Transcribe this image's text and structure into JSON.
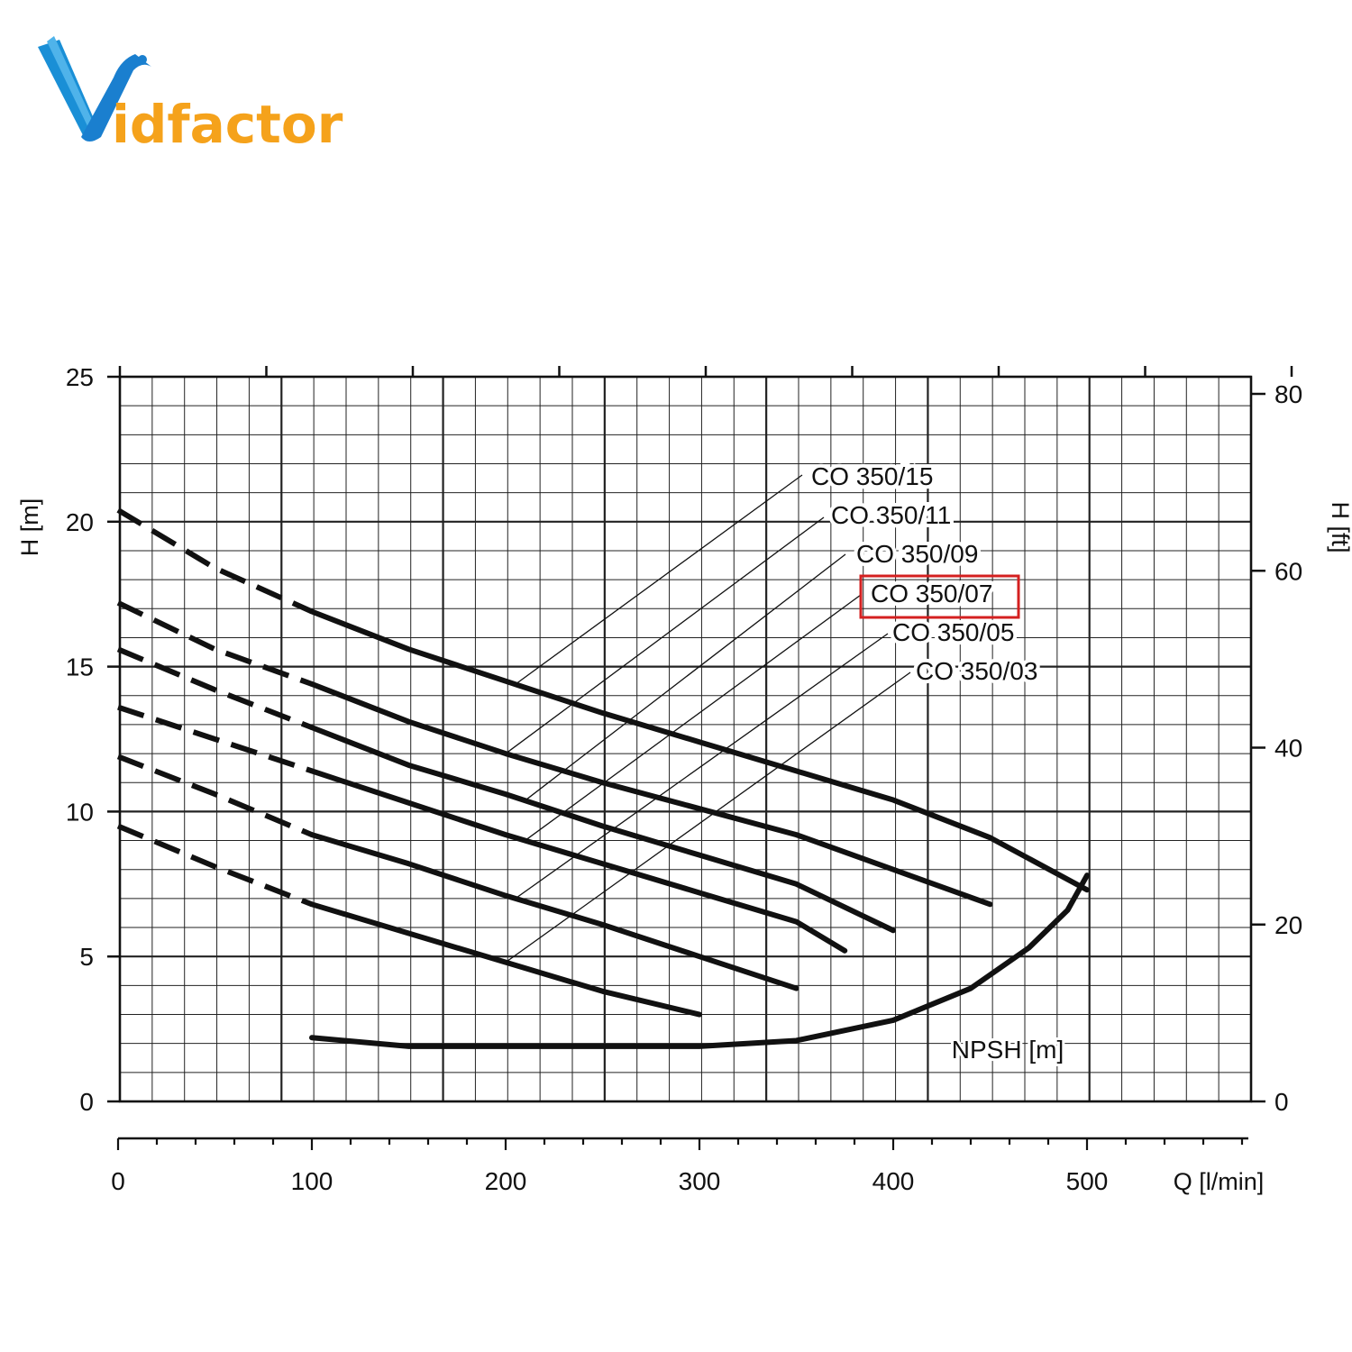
{
  "brand": {
    "logo_text": "Vidfactor",
    "logo_color_blue": "#1a8fd6",
    "logo_color_orange": "#f5a21b"
  },
  "chart_data": {
    "type": "line",
    "xlabel": "Q [l/min]",
    "ylabel_left": "H [m]",
    "ylabel_right": "H [ft]",
    "xlim": [
      0,
      580
    ],
    "ylim": [
      0,
      25
    ],
    "ylim_right_ft": [
      0,
      82
    ],
    "xticks": [
      0,
      100,
      200,
      300,
      400,
      500
    ],
    "yticks": [
      0,
      5,
      10,
      15,
      20,
      25
    ],
    "yticks_right": [
      0,
      20,
      40,
      60,
      80
    ],
    "grid": true,
    "highlight_color": "#d42020",
    "series": [
      {
        "name": "CO 350/15",
        "dashed_to": 100,
        "highlighted": false,
        "points": [
          [
            0,
            20.4
          ],
          [
            50,
            18.4
          ],
          [
            100,
            16.9
          ],
          [
            150,
            15.6
          ],
          [
            200,
            14.5
          ],
          [
            250,
            13.4
          ],
          [
            300,
            12.4
          ],
          [
            350,
            11.4
          ],
          [
            400,
            10.4
          ],
          [
            450,
            9.1
          ],
          [
            500,
            7.3
          ]
        ]
      },
      {
        "name": "CO 350/11",
        "dashed_to": 100,
        "highlighted": false,
        "points": [
          [
            0,
            17.2
          ],
          [
            50,
            15.6
          ],
          [
            100,
            14.4
          ],
          [
            150,
            13.1
          ],
          [
            200,
            12.0
          ],
          [
            250,
            11.0
          ],
          [
            300,
            10.1
          ],
          [
            350,
            9.2
          ],
          [
            400,
            8.0
          ],
          [
            450,
            6.8
          ]
        ]
      },
      {
        "name": "CO 350/09",
        "dashed_to": 100,
        "highlighted": false,
        "points": [
          [
            0,
            15.6
          ],
          [
            50,
            14.2
          ],
          [
            100,
            12.9
          ],
          [
            150,
            11.6
          ],
          [
            200,
            10.6
          ],
          [
            250,
            9.5
          ],
          [
            300,
            8.5
          ],
          [
            350,
            7.5
          ],
          [
            400,
            5.9
          ]
        ]
      },
      {
        "name": "CO 350/07",
        "dashed_to": 100,
        "highlighted": true,
        "points": [
          [
            0,
            13.6
          ],
          [
            50,
            12.5
          ],
          [
            100,
            11.4
          ],
          [
            150,
            10.3
          ],
          [
            200,
            9.2
          ],
          [
            250,
            8.2
          ],
          [
            300,
            7.2
          ],
          [
            350,
            6.2
          ],
          [
            375,
            5.2
          ]
        ]
      },
      {
        "name": "CO 350/05",
        "dashed_to": 100,
        "highlighted": false,
        "points": [
          [
            0,
            11.9
          ],
          [
            50,
            10.6
          ],
          [
            100,
            9.2
          ],
          [
            150,
            8.2
          ],
          [
            200,
            7.1
          ],
          [
            250,
            6.1
          ],
          [
            300,
            5.0
          ],
          [
            350,
            3.9
          ]
        ]
      },
      {
        "name": "CO 350/03",
        "dashed_to": 100,
        "highlighted": false,
        "points": [
          [
            0,
            9.5
          ],
          [
            50,
            8.1
          ],
          [
            100,
            6.8
          ],
          [
            150,
            5.8
          ],
          [
            200,
            4.8
          ],
          [
            250,
            3.8
          ],
          [
            300,
            3.0
          ]
        ]
      },
      {
        "name": "NPSH [m]",
        "dashed_to": 0,
        "highlighted": false,
        "points": [
          [
            100,
            2.2
          ],
          [
            150,
            1.9
          ],
          [
            200,
            1.9
          ],
          [
            250,
            1.9
          ],
          [
            300,
            1.9
          ],
          [
            350,
            2.1
          ],
          [
            400,
            2.8
          ],
          [
            440,
            3.9
          ],
          [
            470,
            5.3
          ],
          [
            490,
            6.6
          ],
          [
            500,
            7.8
          ]
        ]
      }
    ]
  }
}
